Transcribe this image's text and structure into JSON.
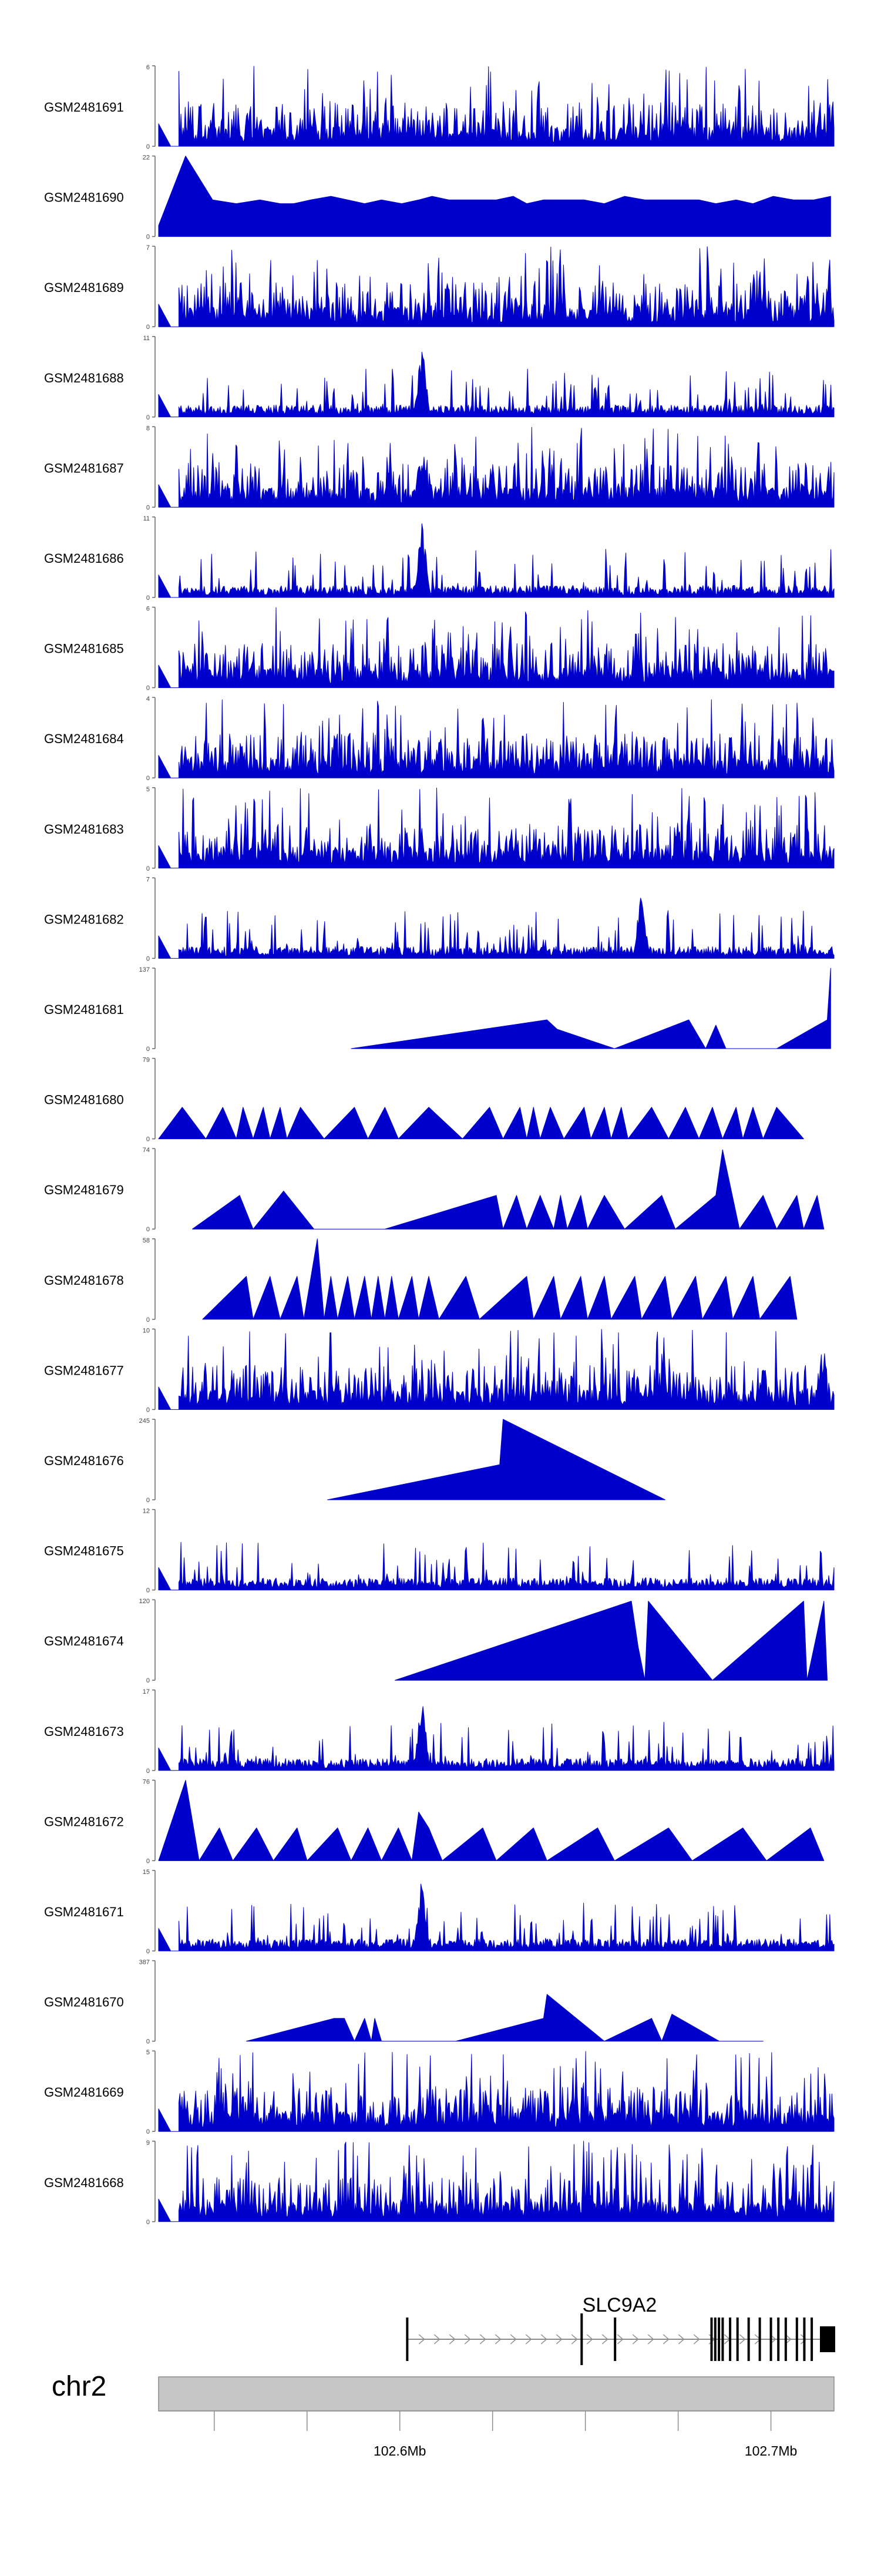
{
  "chart_data": {
    "type": "area",
    "title": "",
    "xlabel": "",
    "ylabel": "",
    "chromosome": "chr2",
    "x_range_mb": [
      102.535,
      102.717
    ],
    "x_ticks": [
      102.55,
      102.575,
      102.6,
      102.625,
      102.65,
      102.675,
      102.7,
      102.725
    ],
    "x_tick_labels": [
      {
        "value": 102.6,
        "label": "102.6Mb"
      },
      {
        "value": 102.7,
        "label": "102.7Mb"
      }
    ],
    "fill_color": "#0000cc",
    "tracks": [
      {
        "name": "GSM2481691",
        "ymax": 6,
        "ymax_label": "6",
        "style": "dense",
        "seed": 11,
        "hotspot": null
      },
      {
        "name": "GSM2481690",
        "ymax": 22,
        "ymax_label": "22",
        "style": "spikes",
        "seed": 12,
        "peaks": [
          [
            0.0,
            3
          ],
          [
            0.04,
            22
          ],
          [
            0.08,
            10
          ],
          [
            0.115,
            9
          ],
          [
            0.15,
            10
          ],
          [
            0.18,
            9
          ],
          [
            0.2,
            9
          ],
          [
            0.225,
            10
          ],
          [
            0.255,
            11
          ],
          [
            0.28,
            10
          ],
          [
            0.305,
            9
          ],
          [
            0.33,
            10
          ],
          [
            0.36,
            9
          ],
          [
            0.385,
            10
          ],
          [
            0.405,
            11
          ],
          [
            0.43,
            10
          ],
          [
            0.455,
            10
          ],
          [
            0.48,
            10
          ],
          [
            0.5,
            10
          ],
          [
            0.525,
            11
          ],
          [
            0.545,
            9
          ],
          [
            0.57,
            10
          ],
          [
            0.63,
            10
          ],
          [
            0.66,
            9
          ],
          [
            0.69,
            11
          ],
          [
            0.72,
            10
          ],
          [
            0.745,
            10
          ],
          [
            0.775,
            10
          ],
          [
            0.8,
            10
          ],
          [
            0.825,
            9
          ],
          [
            0.855,
            10
          ],
          [
            0.88,
            9
          ],
          [
            0.91,
            11
          ],
          [
            0.94,
            10
          ],
          [
            0.97,
            10
          ],
          [
            0.995,
            11
          ]
        ]
      },
      {
        "name": "GSM2481689",
        "ymax": 7,
        "ymax_label": "7",
        "style": "dense",
        "seed": 13,
        "hotspot": null
      },
      {
        "name": "GSM2481688",
        "ymax": 11,
        "ymax_label": "11",
        "style": "sparse",
        "seed": 14,
        "hotspot": [
          0.39,
          11
        ]
      },
      {
        "name": "GSM2481687",
        "ymax": 8,
        "ymax_label": "8",
        "style": "dense",
        "seed": 15,
        "hotspot": [
          0.39,
          7
        ]
      },
      {
        "name": "GSM2481686",
        "ymax": 11,
        "ymax_label": "11",
        "style": "sparse",
        "seed": 16,
        "hotspot": [
          0.39,
          11
        ]
      },
      {
        "name": "GSM2481685",
        "ymax": 6,
        "ymax_label": "6",
        "style": "dense",
        "seed": 17,
        "hotspot": null
      },
      {
        "name": "GSM2481684",
        "ymax": 4,
        "ymax_label": "4",
        "style": "dense",
        "seed": 18,
        "hotspot": null
      },
      {
        "name": "GSM2481683",
        "ymax": 5,
        "ymax_label": "5",
        "style": "dense",
        "seed": 19,
        "hotspot": null
      },
      {
        "name": "GSM2481682",
        "ymax": 7,
        "ymax_label": "7",
        "style": "sparse",
        "seed": 20,
        "hotspot": [
          0.715,
          7
        ]
      },
      {
        "name": "GSM2481681",
        "ymax": 137,
        "ymax_label": "137",
        "style": "spikes",
        "seed": 21,
        "peaks": [
          [
            0.285,
            0
          ],
          [
            0.575,
            49
          ],
          [
            0.59,
            33
          ],
          [
            0.675,
            0
          ],
          [
            0.785,
            49
          ],
          [
            0.81,
            0
          ],
          [
            0.825,
            40
          ],
          [
            0.84,
            0
          ],
          [
            0.915,
            0
          ],
          [
            0.99,
            49
          ],
          [
            0.995,
            137
          ]
        ]
      },
      {
        "name": "GSM2481680",
        "ymax": 79,
        "ymax_label": "79",
        "style": "spikes",
        "seed": 22,
        "peaks": [
          [
            0.0,
            0
          ],
          [
            0.035,
            31
          ],
          [
            0.07,
            0
          ],
          [
            0.095,
            31
          ],
          [
            0.115,
            0
          ],
          [
            0.125,
            31
          ],
          [
            0.14,
            0
          ],
          [
            0.155,
            31
          ],
          [
            0.165,
            0
          ],
          [
            0.18,
            31
          ],
          [
            0.19,
            0
          ],
          [
            0.21,
            31
          ],
          [
            0.245,
            0
          ],
          [
            0.29,
            31
          ],
          [
            0.31,
            0
          ],
          [
            0.335,
            31
          ],
          [
            0.355,
            0
          ],
          [
            0.4,
            31
          ],
          [
            0.45,
            0
          ],
          [
            0.49,
            31
          ],
          [
            0.51,
            0
          ],
          [
            0.535,
            31
          ],
          [
            0.545,
            0
          ],
          [
            0.555,
            31
          ],
          [
            0.565,
            0
          ],
          [
            0.58,
            31
          ],
          [
            0.6,
            0
          ],
          [
            0.63,
            31
          ],
          [
            0.64,
            0
          ],
          [
            0.66,
            31
          ],
          [
            0.67,
            0
          ],
          [
            0.685,
            31
          ],
          [
            0.695,
            0
          ],
          [
            0.73,
            31
          ],
          [
            0.755,
            0
          ],
          [
            0.78,
            31
          ],
          [
            0.8,
            0
          ],
          [
            0.82,
            31
          ],
          [
            0.835,
            0
          ],
          [
            0.855,
            31
          ],
          [
            0.865,
            0
          ],
          [
            0.88,
            31
          ],
          [
            0.895,
            0
          ],
          [
            0.915,
            31
          ],
          [
            0.955,
            0
          ]
        ]
      },
      {
        "name": "GSM2481679",
        "ymax": 74,
        "ymax_label": "74",
        "style": "spikes",
        "seed": 23,
        "peaks": [
          [
            0.05,
            0
          ],
          [
            0.12,
            31
          ],
          [
            0.14,
            0
          ],
          [
            0.18,
            31
          ],
          [
            0.185,
            35
          ],
          [
            0.23,
            0
          ],
          [
            0.335,
            0
          ],
          [
            0.5,
            31
          ],
          [
            0.51,
            0
          ],
          [
            0.53,
            31
          ],
          [
            0.545,
            0
          ],
          [
            0.565,
            31
          ],
          [
            0.585,
            0
          ],
          [
            0.595,
            31
          ],
          [
            0.605,
            0
          ],
          [
            0.625,
            31
          ],
          [
            0.635,
            0
          ],
          [
            0.66,
            31
          ],
          [
            0.69,
            0
          ],
          [
            0.745,
            31
          ],
          [
            0.765,
            0
          ],
          [
            0.825,
            31
          ],
          [
            0.835,
            73
          ],
          [
            0.86,
            0
          ],
          [
            0.895,
            31
          ],
          [
            0.915,
            0
          ],
          [
            0.945,
            31
          ],
          [
            0.955,
            0
          ],
          [
            0.975,
            31
          ],
          [
            0.985,
            0
          ]
        ]
      },
      {
        "name": "GSM2481678",
        "ymax": 58,
        "ymax_label": "58",
        "style": "spikes",
        "seed": 24,
        "peaks": [
          [
            0.065,
            0
          ],
          [
            0.13,
            31
          ],
          [
            0.14,
            0
          ],
          [
            0.165,
            31
          ],
          [
            0.18,
            0
          ],
          [
            0.205,
            31
          ],
          [
            0.215,
            0
          ],
          [
            0.235,
            58
          ],
          [
            0.245,
            0
          ],
          [
            0.255,
            31
          ],
          [
            0.265,
            0
          ],
          [
            0.28,
            31
          ],
          [
            0.29,
            0
          ],
          [
            0.305,
            31
          ],
          [
            0.315,
            0
          ],
          [
            0.325,
            31
          ],
          [
            0.335,
            0
          ],
          [
            0.345,
            31
          ],
          [
            0.355,
            0
          ],
          [
            0.375,
            31
          ],
          [
            0.385,
            0
          ],
          [
            0.4,
            31
          ],
          [
            0.415,
            0
          ],
          [
            0.455,
            31
          ],
          [
            0.475,
            0
          ],
          [
            0.545,
            31
          ],
          [
            0.555,
            0
          ],
          [
            0.585,
            31
          ],
          [
            0.595,
            0
          ],
          [
            0.625,
            31
          ],
          [
            0.635,
            0
          ],
          [
            0.66,
            31
          ],
          [
            0.67,
            0
          ],
          [
            0.705,
            31
          ],
          [
            0.715,
            0
          ],
          [
            0.75,
            31
          ],
          [
            0.76,
            0
          ],
          [
            0.795,
            31
          ],
          [
            0.805,
            0
          ],
          [
            0.84,
            31
          ],
          [
            0.85,
            0
          ],
          [
            0.88,
            31
          ],
          [
            0.89,
            0
          ],
          [
            0.935,
            31
          ],
          [
            0.945,
            0
          ]
        ]
      },
      {
        "name": "GSM2481677",
        "ymax": 10,
        "ymax_label": "10",
        "style": "dense",
        "seed": 25,
        "hotspot": null
      },
      {
        "name": "GSM2481676",
        "ymax": 245,
        "ymax_label": "245",
        "style": "spikes",
        "seed": 26,
        "peaks": [
          [
            0.25,
            0
          ],
          [
            0.505,
            107
          ],
          [
            0.51,
            245
          ],
          [
            0.75,
            0
          ]
        ]
      },
      {
        "name": "GSM2481675",
        "ymax": 12,
        "ymax_label": "12",
        "style": "sparse",
        "seed": 27,
        "hotspot": null
      },
      {
        "name": "GSM2481674",
        "ymax": 120,
        "ymax_label": "120",
        "style": "spikes",
        "seed": 28,
        "peaks": [
          [
            0.35,
            0
          ],
          [
            0.7,
            118
          ],
          [
            0.71,
            50
          ],
          [
            0.72,
            0
          ],
          [
            0.725,
            118
          ],
          [
            0.82,
            0
          ],
          [
            0.955,
            118
          ],
          [
            0.96,
            0
          ],
          [
            0.985,
            118
          ],
          [
            0.99,
            0
          ]
        ]
      },
      {
        "name": "GSM2481673",
        "ymax": 17,
        "ymax_label": "17",
        "style": "sparse",
        "seed": 29,
        "hotspot": [
          0.39,
          17
        ]
      },
      {
        "name": "GSM2481672",
        "ymax": 76,
        "ymax_label": "76",
        "style": "spikes",
        "seed": 30,
        "peaks": [
          [
            0.0,
            0
          ],
          [
            0.04,
            76
          ],
          [
            0.06,
            0
          ],
          [
            0.09,
            31
          ],
          [
            0.11,
            0
          ],
          [
            0.145,
            31
          ],
          [
            0.17,
            0
          ],
          [
            0.205,
            31
          ],
          [
            0.22,
            0
          ],
          [
            0.265,
            31
          ],
          [
            0.285,
            0
          ],
          [
            0.31,
            31
          ],
          [
            0.33,
            0
          ],
          [
            0.355,
            31
          ],
          [
            0.375,
            0
          ],
          [
            0.385,
            46
          ],
          [
            0.4,
            31
          ],
          [
            0.42,
            0
          ],
          [
            0.48,
            31
          ],
          [
            0.5,
            0
          ],
          [
            0.555,
            31
          ],
          [
            0.575,
            0
          ],
          [
            0.65,
            31
          ],
          [
            0.675,
            0
          ],
          [
            0.755,
            31
          ],
          [
            0.79,
            0
          ],
          [
            0.865,
            31
          ],
          [
            0.9,
            0
          ],
          [
            0.965,
            31
          ],
          [
            0.985,
            0
          ]
        ]
      },
      {
        "name": "GSM2481671",
        "ymax": 15,
        "ymax_label": "15",
        "style": "sparse",
        "seed": 31,
        "hotspot": [
          0.39,
          15
        ]
      },
      {
        "name": "GSM2481670",
        "ymax": 387,
        "ymax_label": "387",
        "style": "spikes",
        "seed": 32,
        "peaks": [
          [
            0.13,
            0
          ],
          [
            0.26,
            110
          ],
          [
            0.275,
            110
          ],
          [
            0.29,
            0
          ],
          [
            0.305,
            110
          ],
          [
            0.315,
            0
          ],
          [
            0.32,
            110
          ],
          [
            0.33,
            0
          ],
          [
            0.38,
            0
          ],
          [
            0.44,
            0
          ],
          [
            0.57,
            110
          ],
          [
            0.575,
            225
          ],
          [
            0.66,
            0
          ],
          [
            0.73,
            110
          ],
          [
            0.745,
            0
          ],
          [
            0.76,
            130
          ],
          [
            0.83,
            0
          ],
          [
            0.895,
            0
          ]
        ]
      },
      {
        "name": "GSM2481669",
        "ymax": 5,
        "ymax_label": "5",
        "style": "dense",
        "seed": 33,
        "hotspot": null
      },
      {
        "name": "GSM2481668",
        "ymax": 9,
        "ymax_label": "9",
        "style": "dense",
        "seed": 34,
        "hotspot": null
      }
    ],
    "gene_track": {
      "gene_name": "SLC9A2",
      "start_mb": 102.602,
      "end_mb": 102.717,
      "color": "#000000",
      "exons_mb": [
        102.602,
        102.649,
        102.658,
        102.684,
        102.685,
        102.686,
        102.687,
        102.689,
        102.691,
        102.694,
        102.697,
        102.7,
        102.702,
        102.704,
        102.707,
        102.709,
        102.711
      ]
    }
  }
}
